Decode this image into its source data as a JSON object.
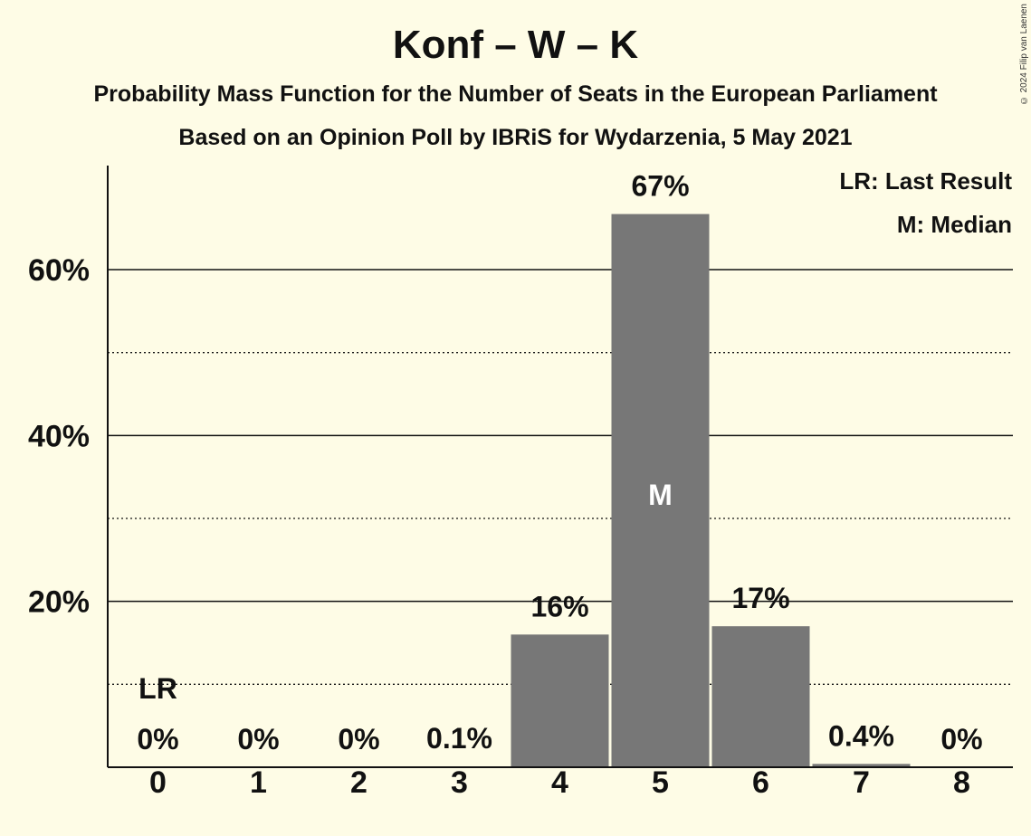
{
  "header": {
    "title": "Konf – W – K",
    "subtitle_1": "Probability Mass Function for the Number of Seats in the European Parliament",
    "subtitle_2": "Based on an Opinion Poll by IBRiS for Wydarzenia, 5 May 2021",
    "copyright": "© 2024 Filip van Laenen"
  },
  "legend": {
    "last_result": "LR: Last Result",
    "median": "M: Median"
  },
  "colors": {
    "background": "#fefce6",
    "bar": "#777777",
    "text": "#111111"
  },
  "chart_data": {
    "type": "bar",
    "categories": [
      "0",
      "1",
      "2",
      "3",
      "4",
      "5",
      "6",
      "7",
      "8"
    ],
    "values": [
      0,
      0,
      0,
      0.1,
      16,
      66.7,
      17,
      0.4,
      0
    ],
    "value_labels": [
      "0%",
      "0%",
      "0%",
      "0.1%",
      "16%",
      "67%",
      "17%",
      "0.4%",
      "0%"
    ],
    "ylim": [
      0,
      72
    ],
    "major_ticks": [
      20,
      40,
      60
    ],
    "major_tick_labels": [
      "20%",
      "40%",
      "60%"
    ],
    "minor_gridlines": [
      10,
      30,
      50
    ],
    "last_result_category": "0",
    "last_result_marker": "LR",
    "median_category": "5",
    "median_marker": "M",
    "grid": true,
    "legend_position": "top-right"
  }
}
